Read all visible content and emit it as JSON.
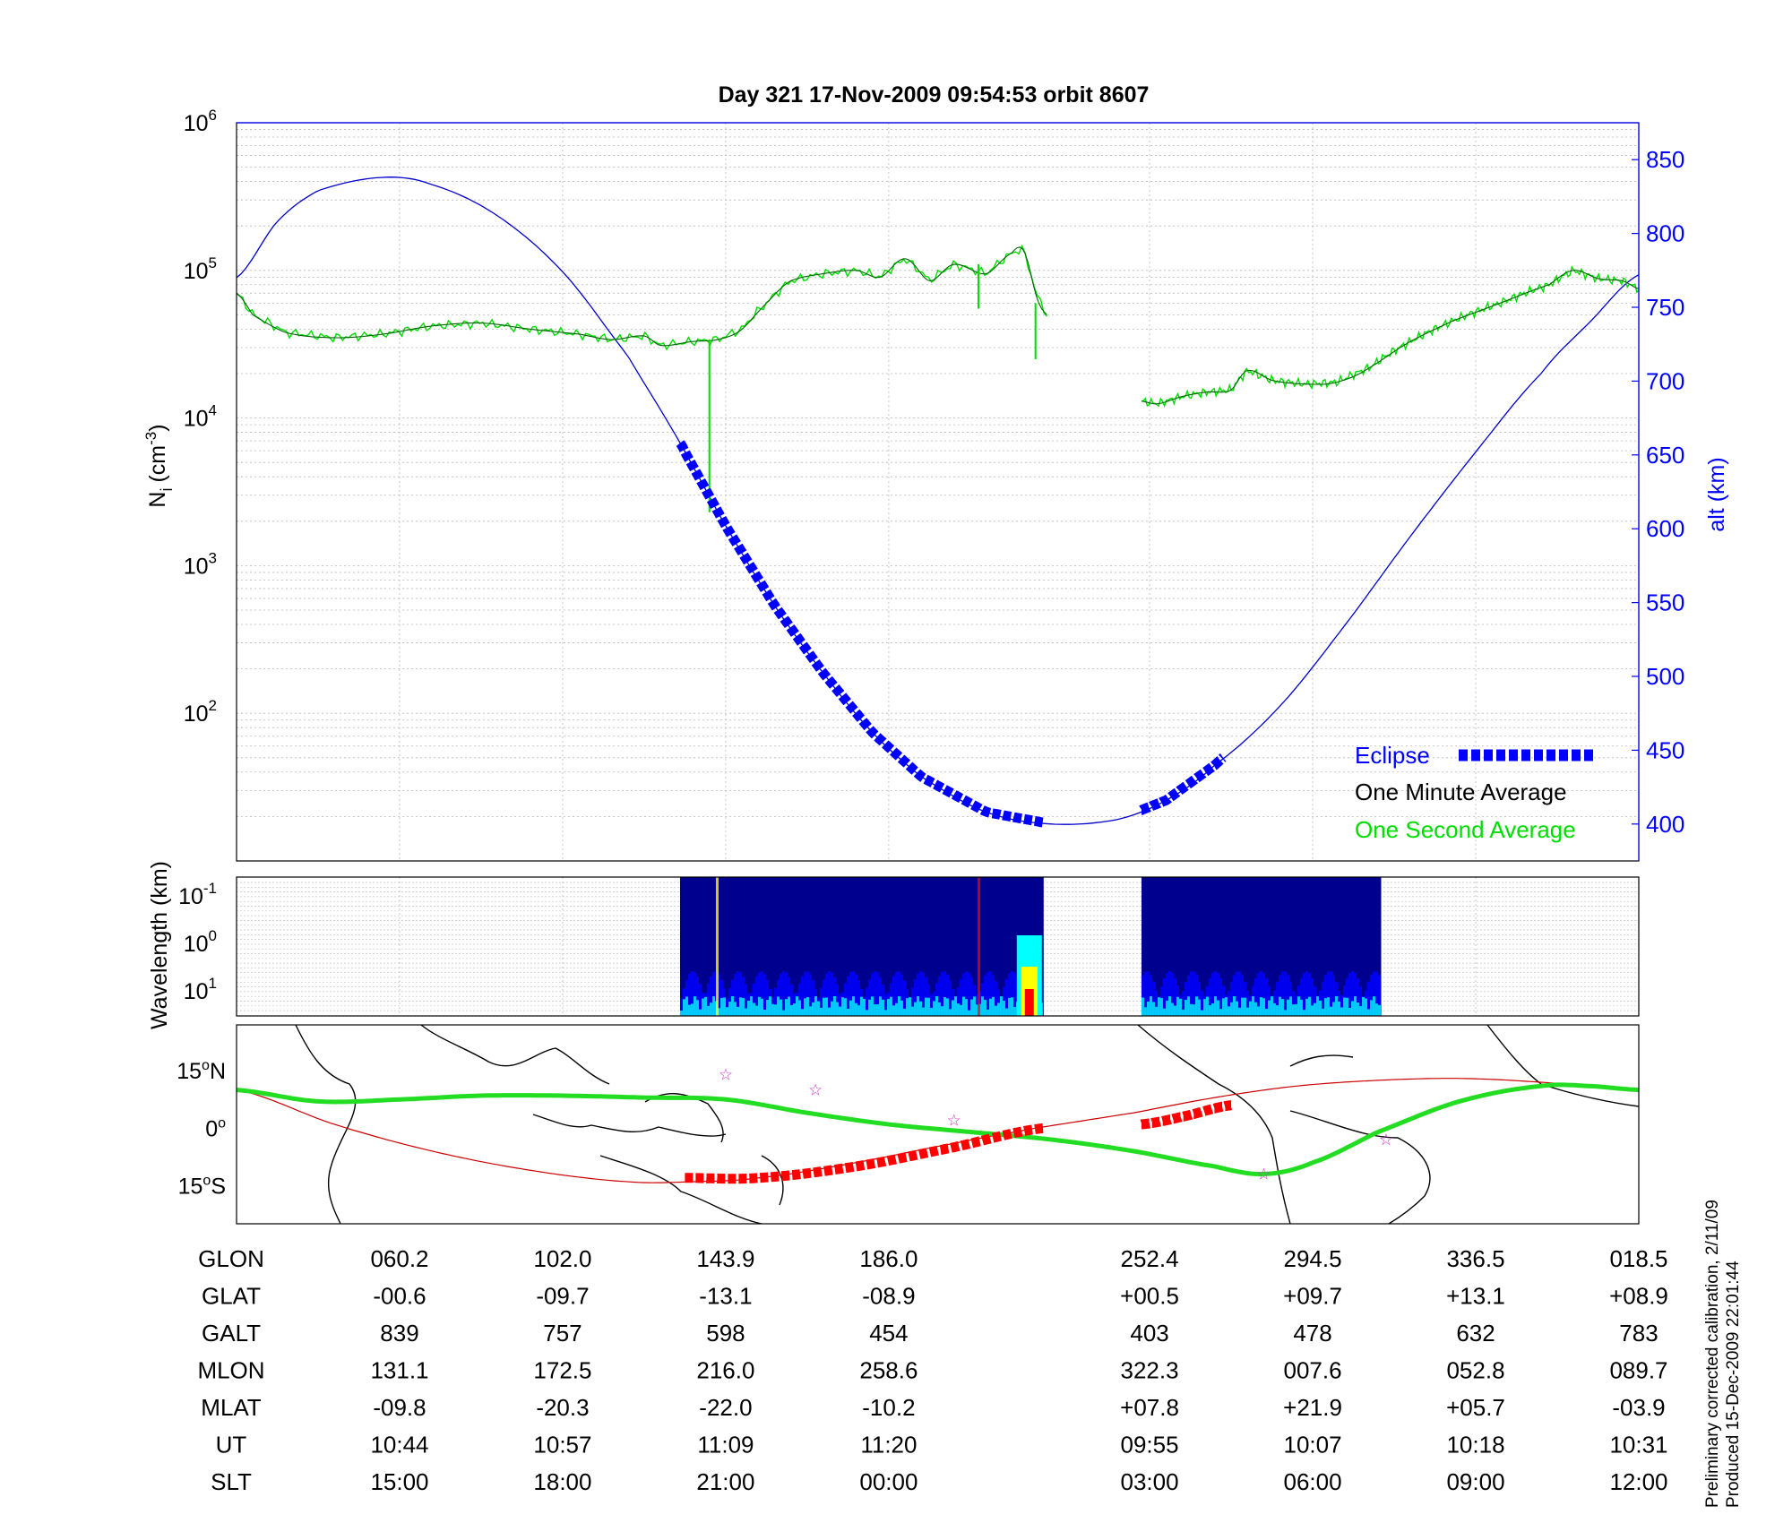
{
  "chart_data": [
    {
      "type": "line",
      "title": "Day 321  17-Nov-2009 09:54:53   orbit 8607",
      "ylabel": "N",
      "ylabel_sub": "i",
      "ylabel_unit": "(cm",
      "ylabel_unit_exp": "-3",
      "ylabel_close": ")",
      "y2label": "alt (km)",
      "yscale": "log",
      "ylim": [
        10,
        1000000
      ],
      "y_ticks": [
        {
          "base": "10",
          "exp": "6",
          "value": 1000000
        },
        {
          "base": "10",
          "exp": "5",
          "value": 100000
        },
        {
          "base": "10",
          "exp": "4",
          "value": 10000
        },
        {
          "base": "10",
          "exp": "3",
          "value": 1000
        },
        {
          "base": "10",
          "exp": "2",
          "value": 100
        }
      ],
      "y2lim": [
        375,
        875
      ],
      "y2_ticks": [
        "850",
        "800",
        "750",
        "700",
        "650",
        "600",
        "550",
        "500",
        "450",
        "400"
      ],
      "xlim": [
        0,
        8.6
      ],
      "x_grid_positions": [
        1,
        2,
        3,
        4,
        5.6,
        6.6,
        7.6,
        8.6
      ],
      "grid": true,
      "legend_position": "bottom-right",
      "series": [
        {
          "name": "Eclipse",
          "color": "#0000ff",
          "style": "thick-dashed"
        },
        {
          "name": "One Minute Average",
          "color": "#000000",
          "style": "line"
        },
        {
          "name": "One Second Average",
          "color": "#00dd00",
          "style": "line"
        }
      ],
      "altitude_km": {
        "x": [
          0,
          0.25,
          0.5,
          0.9,
          1.2,
          1.6,
          2.0,
          2.4,
          2.7,
          3.0,
          3.3,
          3.6,
          3.9,
          4.2,
          4.6,
          5.0,
          5.4,
          5.7,
          6.0,
          6.4,
          6.8,
          7.2,
          7.6,
          8.0,
          8.3,
          8.6
        ],
        "y": [
          770,
          808,
          829,
          838,
          833,
          812,
          774,
          717,
          662,
          602,
          548,
          502,
          462,
          432,
          408,
          400,
          403,
          416,
          440,
          480,
          535,
          595,
          652,
          705,
          740,
          772
        ]
      },
      "eclipse_segments": [
        {
          "x_start": 2.72,
          "x_end": 4.95
        },
        {
          "x_start": 5.55,
          "x_end": 6.05
        }
      ],
      "ion_density": {
        "segments": [
          {
            "x": [
              0,
              0.1,
              0.3,
              0.6,
              0.9,
              1.2,
              1.5,
              1.8,
              2.1,
              2.3,
              2.5,
              2.6,
              2.8,
              2.95,
              3.1,
              3.25,
              3.4,
              3.6,
              3.8,
              3.95,
              4.1,
              4.25,
              4.4,
              4.6,
              4.75,
              4.82,
              4.9,
              4.97
            ],
            "y": [
              70000,
              50000,
              38000,
              35000,
              37000,
              42000,
              44000,
              40000,
              37000,
              34000,
              36000,
              31000,
              33000,
              34000,
              40000,
              60000,
              85000,
              95000,
              100000,
              90000,
              120000,
              85000,
              110000,
              95000,
              130000,
              140000,
              70000,
              50000
            ]
          },
          {
            "x": [
              5.55,
              5.65,
              5.8,
              5.95,
              6.1,
              6.2,
              6.35,
              6.55,
              6.75,
              6.95,
              7.2,
              7.45,
              7.75,
              8.05,
              8.2,
              8.35,
              8.5,
              8.6
            ],
            "y": [
              13000,
              12500,
              14000,
              15000,
              15500,
              21000,
              18000,
              17000,
              17500,
              22000,
              33000,
              45000,
              60000,
              80000,
              100000,
              88000,
              85000,
              75000
            ]
          }
        ],
        "spikes": [
          {
            "x": 2.9,
            "y_from": 34000,
            "y_to": 2300
          },
          {
            "x": 4.55,
            "y_from": 110000,
            "y_to": 55000
          },
          {
            "x": 4.9,
            "y_from": 60000,
            "y_to": 25000
          }
        ]
      }
    },
    {
      "type": "heatmap",
      "ylabel": "Wavelength (km)",
      "y_ticks": [
        {
          "base": "10",
          "exp": "-1"
        },
        {
          "base": "10",
          "exp": "0"
        },
        {
          "base": "10",
          "exp": "1"
        }
      ],
      "data_windows": [
        {
          "x_start": 2.72,
          "x_end": 4.95
        },
        {
          "x_start": 5.55,
          "x_end": 7.02
        }
      ],
      "colormap": [
        "#00008f",
        "#0000ff",
        "#00ffff",
        "#ffff00",
        "#ff0000"
      ]
    },
    {
      "type": "map",
      "y_ticks": [
        {
          "label": "15",
          "suffix": "N",
          "lat": 15
        },
        {
          "label": "0",
          "suffix": "",
          "lat": 0
        },
        {
          "label": "15",
          "suffix": "S",
          "lat": -15
        }
      ],
      "ylim": [
        -25,
        27
      ],
      "equator_track": {
        "x": [
          0,
          0.5,
          1.0,
          1.5,
          2.0,
          2.5,
          3.0,
          3.5,
          4.0,
          4.5,
          5.0,
          5.5,
          6.0,
          6.3,
          6.6,
          7.0,
          7.5,
          8.0,
          8.3,
          8.6
        ],
        "y": [
          10,
          7,
          7.5,
          8.5,
          8.5,
          8,
          7.5,
          4,
          1,
          -1,
          -3,
          -6,
          -10,
          -12,
          -9,
          -1,
          7,
          11,
          11,
          10
        ]
      },
      "magnetic_equator": {
        "x": [
          0,
          0.6,
          1.2,
          1.8,
          2.4,
          2.8,
          3.2,
          3.8,
          4.4,
          4.9,
          5.5,
          6.0,
          6.5,
          7.0,
          7.5,
          8.0,
          8.6
        ],
        "y": [
          10,
          1,
          -6,
          -11,
          -14,
          -14,
          -13,
          -9,
          -4,
          0,
          4,
          8,
          11,
          12.5,
          13,
          12,
          10
        ]
      },
      "eclipse_segments": [
        {
          "x": [
            2.75,
            3.2,
            3.8,
            4.4,
            4.95
          ],
          "y": [
            -13,
            -13,
            -10,
            -5,
            0
          ]
        },
        {
          "x": [
            5.55,
            5.8,
            6.1
          ],
          "y": [
            1,
            3,
            6
          ]
        }
      ],
      "stars": [
        {
          "x": 3.0,
          "y": 14
        },
        {
          "x": 3.55,
          "y": 10
        },
        {
          "x": 4.4,
          "y": 2
        },
        {
          "x": 6.3,
          "y": -12
        },
        {
          "x": 7.05,
          "y": -3
        }
      ]
    }
  ],
  "orbit_table": {
    "row_labels": [
      "GLON",
      "GLAT",
      "GALT",
      "MLON",
      "MLAT",
      "UT",
      "SLT"
    ],
    "columns": [
      {
        "x": 1.0,
        "values": [
          "060.2",
          "-00.6",
          "839",
          "131.1",
          "-09.8",
          "10:44",
          "15:00"
        ]
      },
      {
        "x": 2.0,
        "values": [
          "102.0",
          "-09.7",
          "757",
          "172.5",
          "-20.3",
          "10:57",
          "18:00"
        ]
      },
      {
        "x": 3.0,
        "values": [
          "143.9",
          "-13.1",
          "598",
          "216.0",
          "-22.0",
          "11:09",
          "21:00"
        ]
      },
      {
        "x": 4.0,
        "values": [
          "186.0",
          "-08.9",
          "454",
          "258.6",
          "-10.2",
          "11:20",
          "00:00"
        ]
      },
      {
        "x": 5.6,
        "values": [
          "252.4",
          "+00.5",
          "403",
          "322.3",
          "+07.8",
          "09:55",
          "03:00"
        ]
      },
      {
        "x": 6.6,
        "values": [
          "294.5",
          "+09.7",
          "478",
          "007.6",
          "+21.9",
          "10:07",
          "06:00"
        ]
      },
      {
        "x": 7.6,
        "values": [
          "336.5",
          "+13.1",
          "632",
          "052.8",
          "+05.7",
          "10:18",
          "09:00"
        ]
      },
      {
        "x": 8.6,
        "values": [
          "018.5",
          "+08.9",
          "783",
          "089.7",
          "-03.9",
          "10:31",
          "12:00"
        ]
      }
    ]
  },
  "footer_notes": [
    "Preliminary corrected calibration, 2/11/09",
    "Produced 15-Dec-2009 22:01:44"
  ],
  "colors": {
    "altitude": "#0000cc",
    "eclipse": "#0000ff",
    "density_avg": "#006400",
    "density_sec": "#00dd00",
    "track": "#22dd22",
    "mag_equator": "#cc0000",
    "map_eclipse": "#ff0000",
    "star": "#cc33cc",
    "axis_right": "#0000ff"
  }
}
